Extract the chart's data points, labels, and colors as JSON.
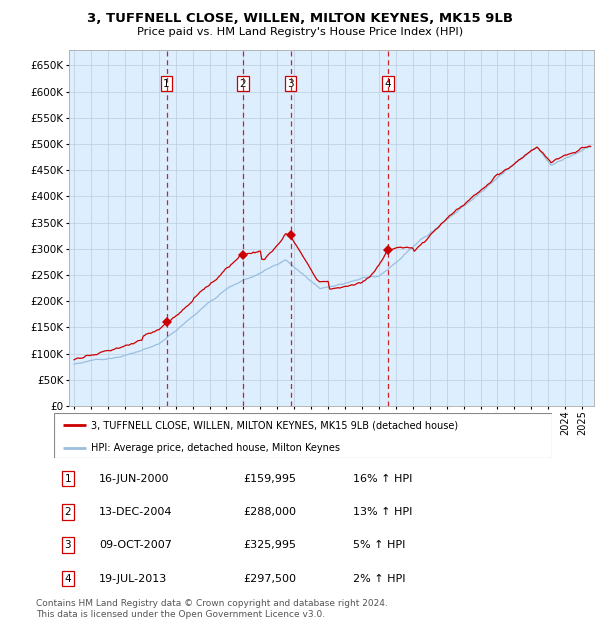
{
  "title": "3, TUFFNELL CLOSE, WILLEN, MILTON KEYNES, MK15 9LB",
  "subtitle": "Price paid vs. HM Land Registry's House Price Index (HPI)",
  "legend_property": "3, TUFFNELL CLOSE, WILLEN, MILTON KEYNES, MK15 9LB (detached house)",
  "legend_hpi": "HPI: Average price, detached house, Milton Keynes",
  "property_color": "#cc0000",
  "hpi_color": "#9bbfdc",
  "background_color": "#ddeeff",
  "grid_color": "#bbccdd",
  "vline_color": "#cc0000",
  "transactions": [
    {
      "num": 1,
      "date": "16-JUN-2000",
      "price": 159995,
      "pct": "16%",
      "x_year": 2000.46
    },
    {
      "num": 2,
      "date": "13-DEC-2004",
      "price": 288000,
      "pct": "13%",
      "x_year": 2004.95
    },
    {
      "num": 3,
      "date": "09-OCT-2007",
      "price": 325995,
      "pct": "5%",
      "x_year": 2007.78
    },
    {
      "num": 4,
      "date": "19-JUL-2013",
      "price": 297500,
      "pct": "2%",
      "x_year": 2013.54
    }
  ],
  "footer1": "Contains HM Land Registry data © Crown copyright and database right 2024.",
  "footer2": "This data is licensed under the Open Government Licence v3.0.",
  "ylim": [
    0,
    680000
  ],
  "yticks": [
    0,
    50000,
    100000,
    150000,
    200000,
    250000,
    300000,
    350000,
    400000,
    450000,
    500000,
    550000,
    600000,
    650000
  ],
  "xlim_start": 1994.7,
  "xlim_end": 2025.7
}
